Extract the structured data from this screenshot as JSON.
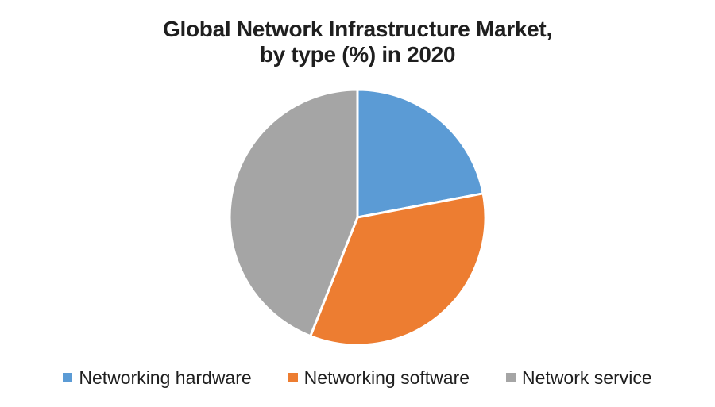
{
  "chart_data": {
    "type": "pie",
    "title": "Global Network Infrastructure Market, by type (%) in 2020",
    "title_lines": [
      "Global Network Infrastructure Market,",
      "by type (%) in 2020"
    ],
    "slices": [
      {
        "label": "Networking hardware",
        "value": 22,
        "color": "#5B9BD5"
      },
      {
        "label": "Networking software",
        "value": 34,
        "color": "#ED7D31"
      },
      {
        "label": "Network service",
        "value": 44,
        "color": "#A5A5A5"
      }
    ],
    "start_angle_deg": 0,
    "clockwise": true,
    "data_labels": false,
    "legend_position": "bottom",
    "slice_border_color": "#FFFFFF",
    "background_color": "#FFFFFF",
    "text_color": "#1f1f1f"
  }
}
